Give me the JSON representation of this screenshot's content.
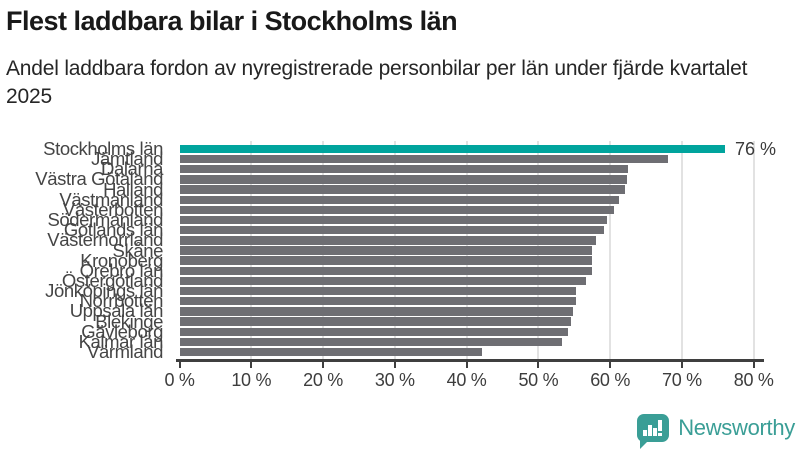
{
  "header": {
    "title": "Flest laddbara bilar i Stockholms län",
    "subtitle": "Andel laddbara fordon av nyregistrerade personbilar per län under fjärde kvartalet 2025"
  },
  "chart_data": {
    "type": "bar",
    "orientation": "horizontal",
    "title": "Flest laddbara bilar i Stockholms län",
    "subtitle": "Andel laddbara fordon av nyregistrerade personbilar per län under fjärde kvartalet 2025",
    "unit": "%",
    "categories": [
      "Stockholms län",
      "Jämtland",
      "Dalarna",
      "Västra Götaland",
      "Halland",
      "Västmanland",
      "Västerbotten",
      "Södermanland",
      "Gotlands län",
      "Västernorrland",
      "Skåne",
      "Kronoberg",
      "Örebro län",
      "Östergötland",
      "Jönköpings län",
      "Norrbotten",
      "Uppsala län",
      "Blekinge",
      "Gävleborg",
      "Kalmar län",
      "Värmland"
    ],
    "values": [
      76,
      68.1,
      62.5,
      62.3,
      62.0,
      61.2,
      60.6,
      59.6,
      59.2,
      58.0,
      57.5,
      57.5,
      57.5,
      56.6,
      55.3,
      55.3,
      54.8,
      54.6,
      54.1,
      53.3,
      42.1
    ],
    "xlim": [
      0,
      80
    ],
    "x_ticks": [
      0,
      10,
      20,
      30,
      40,
      50,
      60,
      70,
      80
    ],
    "x_tick_labels": [
      "0 %",
      "10 %",
      "20 %",
      "30 %",
      "40 %",
      "50 %",
      "60 %",
      "70 %",
      "80 %"
    ],
    "grid": true,
    "legend": false,
    "bar_color": "#6e6e73",
    "highlight": {
      "index": 0,
      "color": "#00a49d"
    },
    "annotations": [
      {
        "text": "76 %",
        "bar_index": 0
      }
    ]
  },
  "footer": {
    "brand": "Newsworthy",
    "brand_color": "#3a9e96",
    "logo_icon": "bar-chart-speech-bubble-icon"
  }
}
